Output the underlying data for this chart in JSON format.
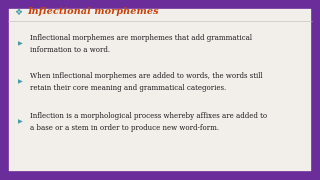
{
  "background_color": "#6b2d9a",
  "box_color": "#f2eeea",
  "box_border_color": "#6b2d9a",
  "title": "Inflectional morphemes",
  "title_color": "#c8420a",
  "title_diamond_color": "#4a9aaa",
  "bullet_arrow_color": "#4a9aaa",
  "points": [
    "Inflectional morphemes are morphemes that add grammatical\ninformation to a word.",
    "When inflectional morphemes are added to words, the words still\nretain their core meaning and grammatical categories.",
    "Inflection is a morphological process whereby affixes are added to\na base or a stem in order to produce new word-form."
  ],
  "text_color": "#1a1a1a",
  "font_size_title": 7.0,
  "font_size_body": 5.0
}
